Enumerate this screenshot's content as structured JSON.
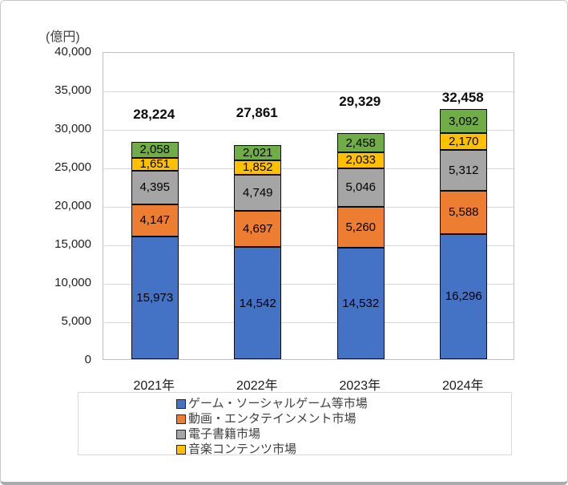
{
  "unit_label": "(億円)",
  "chart_data": {
    "type": "bar",
    "stacked": true,
    "title": "",
    "xlabel": "",
    "ylabel": "(億円)",
    "categories": [
      "2021年",
      "2022年",
      "2023年",
      "2024年"
    ],
    "series": [
      {
        "name": "ゲーム・ソーシャルゲーム等市場",
        "color": "#4472C4",
        "show_in_legend": true,
        "values": [
          15973,
          14542,
          14532,
          16296
        ]
      },
      {
        "name": "動画・エンタテインメント市場",
        "color": "#ED7D31",
        "show_in_legend": true,
        "values": [
          4147,
          4697,
          5260,
          5588
        ]
      },
      {
        "name": "電子書籍市場",
        "color": "#A5A5A5",
        "show_in_legend": true,
        "values": [
          4395,
          4749,
          5046,
          5312
        ]
      },
      {
        "name": "音楽コンテンツ市場",
        "color": "#FFC000",
        "show_in_legend": true,
        "values": [
          1651,
          1852,
          2033,
          2170
        ]
      },
      {
        "name": "",
        "color": "#70AD47",
        "show_in_legend": false,
        "values": [
          2058,
          2021,
          2458,
          3092
        ]
      }
    ],
    "totals": [
      28224,
      27861,
      29329,
      32458
    ],
    "ylim": [
      0,
      40000
    ],
    "ytick_step": 5000,
    "grid": true,
    "legend_position": "bottom"
  }
}
